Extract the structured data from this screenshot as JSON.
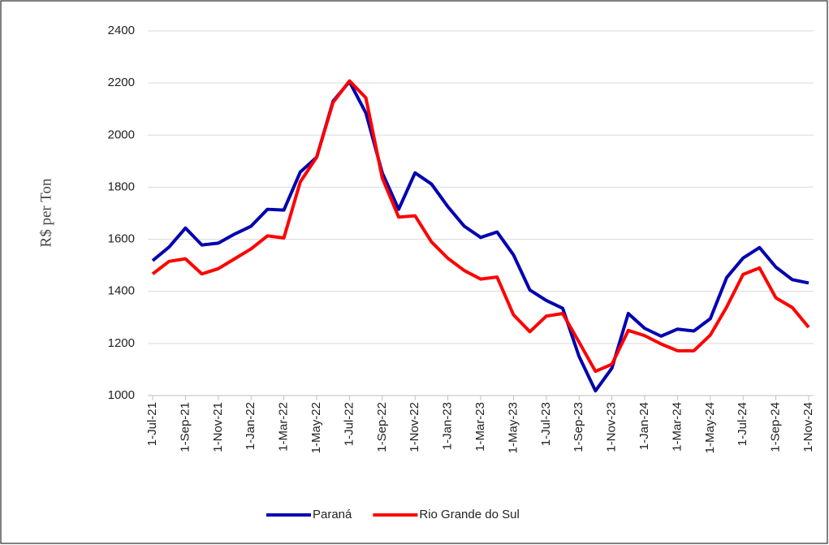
{
  "chart_data": {
    "type": "line",
    "y_label": "R$ per Ton",
    "categories": [
      "1-Jul-21",
      null,
      "1-Sep-21",
      null,
      "1-Nov-21",
      null,
      "1-Jan-22",
      null,
      "1-Mar-22",
      null,
      "1-May-22",
      null,
      "1-Jul-22",
      null,
      "1-Sep-22",
      null,
      "1-Nov-22",
      null,
      "1-Jan-23",
      null,
      "1-Mar-23",
      null,
      "1-May-23",
      null,
      "1-Jul-23",
      null,
      "1-Sep-23",
      null,
      "1-Nov-23",
      null,
      "1-Jan-24",
      null,
      "1-Mar-24",
      null,
      "1-May-24",
      null,
      "1-Jul-24",
      null,
      "1-Sep-24",
      null,
      "1-Nov-24"
    ],
    "series": [
      {
        "name": "Paraná",
        "color": "#0000b0",
        "values": [
          1518,
          1570,
          1643,
          1578,
          1585,
          1620,
          1650,
          1715,
          1712,
          1858,
          1915,
          2130,
          2205,
          2085,
          1855,
          1715,
          1855,
          1812,
          1725,
          1650,
          1607,
          1628,
          1540,
          1405,
          1365,
          1335,
          1150,
          1018,
          1105,
          1315,
          1258,
          1228,
          1255,
          1248,
          1295,
          1453,
          1528,
          1568,
          1493,
          1445,
          1432
        ]
      },
      {
        "name": "Rio Grande do Sul",
        "color": "#ff0000",
        "values": [
          1467,
          1515,
          1525,
          1467,
          1487,
          1525,
          1563,
          1613,
          1605,
          1820,
          1915,
          2125,
          2208,
          2143,
          1835,
          1685,
          1690,
          1590,
          1527,
          1480,
          1447,
          1455,
          1310,
          1245,
          1305,
          1315,
          1205,
          1093,
          1120,
          1250,
          1230,
          1198,
          1172,
          1172,
          1232,
          1340,
          1465,
          1490,
          1375,
          1338,
          1262
        ]
      }
    ],
    "ylim": [
      1000,
      2400
    ],
    "yticks": [
      1000,
      1200,
      1400,
      1600,
      1800,
      2000,
      2200,
      2400
    ],
    "grid": true
  }
}
